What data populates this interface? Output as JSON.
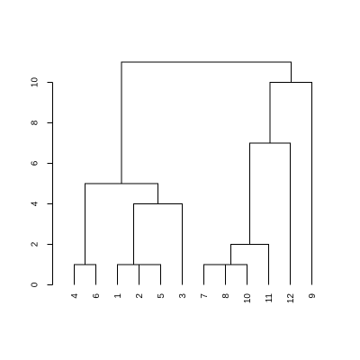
{
  "chart_data": {
    "type": "dendrogram",
    "title": "",
    "xlabel": "",
    "ylabel": "",
    "ylim": [
      0,
      11
    ],
    "yticks": [
      0,
      2,
      4,
      6,
      8,
      10
    ],
    "grid": false,
    "leaves": [
      "4",
      "6",
      "1",
      "2",
      "5",
      "3",
      "7",
      "8",
      "10",
      "11",
      "12",
      "9"
    ],
    "merges": [
      {
        "left": {
          "leaf": 0
        },
        "right": {
          "leaf": 1
        },
        "height": 1
      },
      {
        "left": {
          "leaf": 3
        },
        "right": {
          "leaf": 4
        },
        "height": 1
      },
      {
        "left": {
          "leaf": 2
        },
        "right": {
          "merge": 1
        },
        "height": 1
      },
      {
        "left": {
          "merge": 2
        },
        "right": {
          "leaf": 5
        },
        "height": 4
      },
      {
        "left": {
          "merge": 0
        },
        "right": {
          "merge": 3
        },
        "height": 5
      },
      {
        "left": {
          "leaf": 6
        },
        "right": {
          "leaf": 7
        },
        "height": 1
      },
      {
        "left": {
          "merge": 5
        },
        "right": {
          "leaf": 8
        },
        "height": 1
      },
      {
        "left": {
          "merge": 6
        },
        "right": {
          "leaf": 9
        },
        "height": 2
      },
      {
        "left": {
          "merge": 7
        },
        "right": {
          "leaf": 10
        },
        "height": 7
      },
      {
        "left": {
          "merge": 8
        },
        "right": {
          "leaf": 11
        },
        "height": 10
      },
      {
        "left": {
          "merge": 4
        },
        "right": {
          "merge": 9
        },
        "height": 11
      }
    ]
  }
}
